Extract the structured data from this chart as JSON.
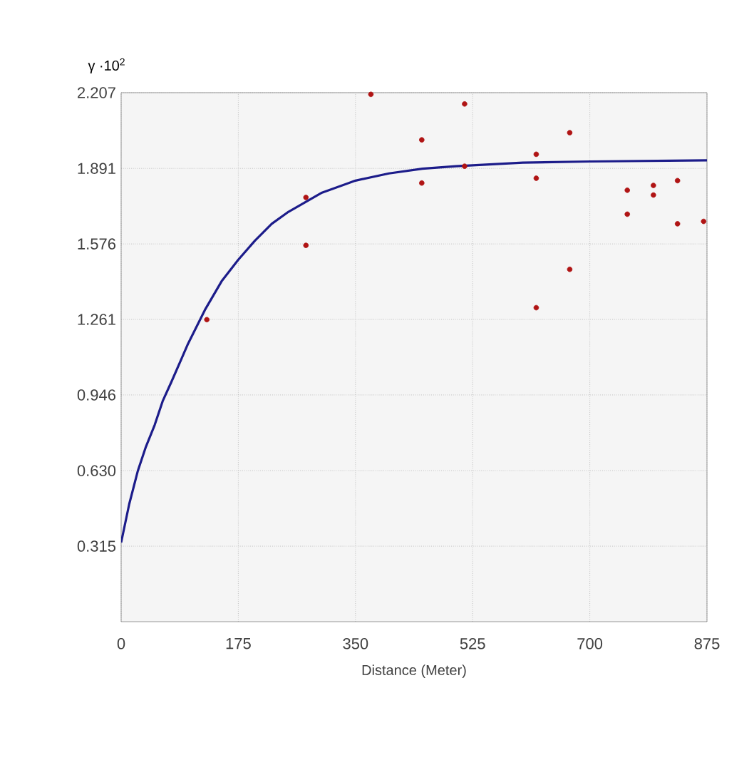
{
  "chart_data": {
    "type": "scatter",
    "ylabel": "γ ·10$^{2}$",
    "xlabel": "Distance (Meter)",
    "xlim": [
      0,
      875
    ],
    "xticks": [
      0,
      175,
      350,
      525,
      700,
      875
    ],
    "ylim": [
      0,
      2.207
    ],
    "yticks": [
      0.315,
      {
        "value": 0.63,
        "label": "0.630"
      },
      0.946,
      1.261,
      1.576,
      1.891,
      2.207
    ],
    "grid": true,
    "series": [
      {
        "type": "line",
        "color": "#1c1c8a",
        "marker": "none",
        "x": [
          0,
          12,
          25,
          37,
          50,
          62,
          75,
          100,
          125,
          150,
          175,
          200,
          225,
          250,
          300,
          350,
          400,
          450,
          500,
          600,
          700,
          875
        ],
        "values": [
          0.33,
          0.49,
          0.63,
          0.73,
          0.82,
          0.92,
          1.0,
          1.16,
          1.3,
          1.42,
          1.51,
          1.59,
          1.66,
          1.71,
          1.79,
          1.84,
          1.87,
          1.89,
          1.9,
          1.915,
          1.92,
          1.925
        ]
      },
      {
        "type": "scatter",
        "marker": "circle",
        "color": "#b01414",
        "x": [
          128,
          276,
          276,
          373,
          449,
          449,
          513,
          513,
          620,
          620,
          620,
          670,
          670,
          756,
          756,
          795,
          795,
          831,
          831,
          870
        ],
        "values": [
          1.26,
          1.77,
          1.57,
          2.2,
          2.01,
          1.83,
          2.16,
          1.9,
          1.95,
          1.85,
          1.31,
          2.04,
          1.47,
          1.8,
          1.7,
          1.82,
          1.78,
          1.84,
          1.66,
          1.67
        ]
      }
    ]
  }
}
